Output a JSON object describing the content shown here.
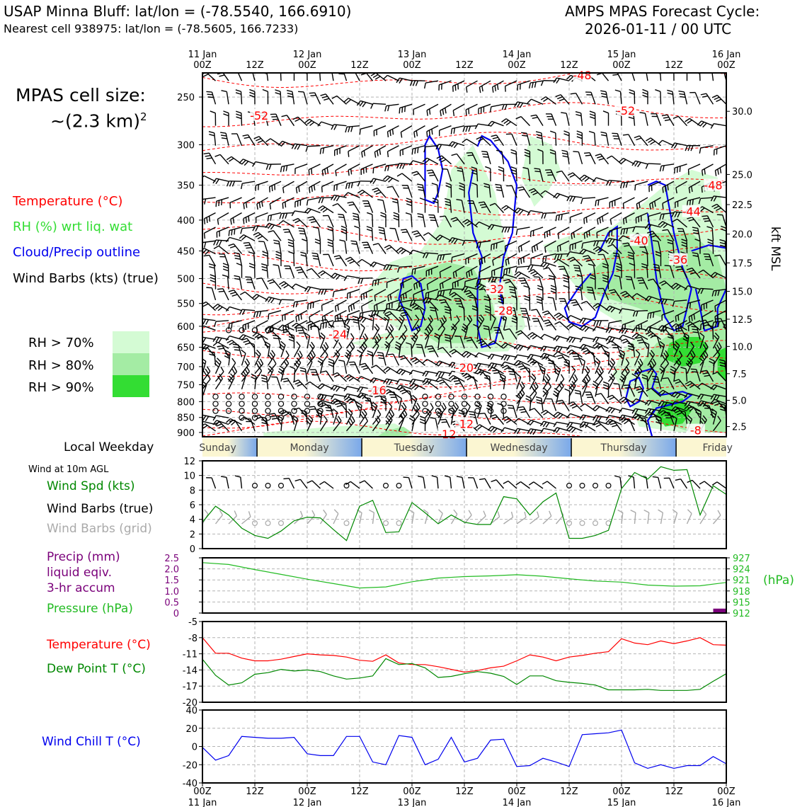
{
  "header": {
    "title_left": "USAP Minna Bluff: lat/lon = (-78.5540, 166.6910)",
    "subtitle_left": "Nearest cell 938975: lat/lon = (-78.5605, 166.7233)",
    "title_right_1": "AMPS MPAS Forecast Cycle:",
    "title_right_2": "2026-01-11 / 00 UTC"
  },
  "cell_size": {
    "line1": "MPAS cell size:",
    "line2": "~(2.3 km)",
    "sup": "2"
  },
  "legend_upper": {
    "temperature": "Temperature (°C)",
    "rh": "RH (%) wrt liq. wat",
    "cloud": "Cloud/Precip outline",
    "wind": "Wind Barbs (kts) (true)",
    "rh70": "RH > 70%",
    "rh80": "RH > 80%",
    "rh90": "RH > 90%"
  },
  "colors": {
    "temperature": "#ff0000",
    "rh_label": "#33dd33",
    "cloud": "#0000ee",
    "rh70": "#d4fbd4",
    "rh80": "#a4eca4",
    "rh90": "#33dd33",
    "speed": "#008800",
    "grid_barbs": "#aaaaaa",
    "precip": "#7a007a",
    "pressure": "#22bb22",
    "dewpoint": "#008800",
    "windchill": "#0000ee"
  },
  "time_axis": {
    "top_dates": [
      "11 Jan",
      "",
      "12 Jan",
      "",
      "13 Jan",
      "",
      "14 Jan",
      "",
      "15 Jan",
      "",
      "16 Jan"
    ],
    "hours": [
      "00Z",
      "12Z",
      "00Z",
      "12Z",
      "00Z",
      "12Z",
      "00Z",
      "12Z",
      "00Z",
      "12Z",
      "00Z"
    ],
    "bottom_dates": [
      "11 Jan",
      "",
      "12 Jan",
      "",
      "13 Jan",
      "",
      "14 Jan",
      "",
      "15 Jan",
      "",
      "16 Jan"
    ]
  },
  "weekday": {
    "label": "Local Weekday",
    "days": [
      "Sunday",
      "Monday",
      "Tuesday",
      "Wednesday",
      "Thursday",
      "Friday"
    ]
  },
  "surface_legend": {
    "heading": "Wind at 10m AGL",
    "speed": "Wind Spd (kts)",
    "barbs": "Wind Barbs (true)",
    "barbs_grid": "Wind Barbs (grid)",
    "precip1": "Precip (mm)",
    "precip2": "liquid eqiv.",
    "precip3": "3-hr accum",
    "pressure": "Pressure (hPa)",
    "pressure_units": "(hPa)",
    "temperature": "Temperature (°C)",
    "dewpoint": "Dew Point T (°C)",
    "windchill": "Wind Chill T (°C)"
  },
  "chart_data": [
    {
      "type": "heatmap",
      "name": "cross-section",
      "ylabel_right": "kft MSL",
      "pressure_ticks": [
        250,
        300,
        350,
        400,
        450,
        500,
        550,
        600,
        650,
        700,
        750,
        800,
        850,
        900
      ],
      "kft_ticks": [
        {
          "p": 264,
          "label": "30.0"
        },
        {
          "p": 336,
          "label": "25.0"
        },
        {
          "p": 377,
          "label": "22.5"
        },
        {
          "p": 422,
          "label": "20.0"
        },
        {
          "p": 471,
          "label": "17.5"
        },
        {
          "p": 525,
          "label": "15.0"
        },
        {
          "p": 584,
          "label": "12.5"
        },
        {
          "p": 648,
          "label": "10.0"
        },
        {
          "p": 719,
          "label": "7.5"
        },
        {
          "p": 796,
          "label": "5.0"
        },
        {
          "p": 880,
          "label": "2.5"
        }
      ],
      "ylim": [
        228,
        915
      ],
      "x_range_hours": [
        0,
        120
      ],
      "temperature_labels": [
        {
          "t": 13,
          "p": 268,
          "v": "-52"
        },
        {
          "t": 97,
          "p": 263,
          "v": "-52"
        },
        {
          "t": 87,
          "p": 230,
          "v": "-48"
        },
        {
          "t": 117,
          "p": 350,
          "v": "-48"
        },
        {
          "t": 112,
          "p": 387,
          "v": "-44"
        },
        {
          "t": 100,
          "p": 432,
          "v": "-40"
        },
        {
          "t": 109,
          "p": 465,
          "v": "-36"
        },
        {
          "t": 67,
          "p": 520,
          "v": "-32"
        },
        {
          "t": 69,
          "p": 565,
          "v": "-28"
        },
        {
          "t": 31,
          "p": 618,
          "v": "-24"
        },
        {
          "t": 60,
          "p": 702,
          "v": "-20"
        },
        {
          "t": 40,
          "p": 765,
          "v": "-16"
        },
        {
          "t": 60,
          "p": 870,
          "v": "-12"
        },
        {
          "t": 56,
          "p": 905,
          "v": "-12"
        },
        {
          "t": 113,
          "p": 892,
          "v": "-8"
        }
      ]
    },
    {
      "type": "line",
      "name": "surface-wind",
      "x_hours": [
        0,
        3,
        6,
        9,
        12,
        15,
        18,
        21,
        24,
        27,
        30,
        33,
        36,
        39,
        42,
        45,
        48,
        51,
        54,
        57,
        60,
        63,
        66,
        69,
        72,
        75,
        78,
        81,
        84,
        87,
        90,
        93,
        96,
        99,
        102,
        105,
        108,
        111,
        114,
        117,
        120
      ],
      "series": [
        {
          "name": "Wind Spd (kts)",
          "values": [
            3.6,
            5.8,
            4.6,
            2.8,
            1.8,
            1.4,
            2.4,
            3.8,
            4.3,
            4.2,
            2.6,
            1.1,
            5.8,
            6.6,
            2.2,
            2.3,
            6.3,
            4.9,
            3.4,
            4.6,
            3.6,
            3.3,
            3.3,
            7.1,
            6.8,
            4.6,
            6.4,
            7.6,
            1.4,
            1.4,
            1.8,
            2.5,
            8.2,
            10.4,
            9.5,
            11.2,
            10.7,
            10.8,
            4.6,
            8.6,
            7.4
          ]
        }
      ],
      "ylim": [
        0,
        12
      ],
      "yticks": [
        "0",
        "2",
        "4",
        "6",
        "8",
        "10",
        "12"
      ]
    },
    {
      "type": "line",
      "name": "pressure-precip",
      "x_hours": [
        0,
        6,
        12,
        18,
        24,
        30,
        36,
        42,
        48,
        54,
        60,
        66,
        72,
        78,
        84,
        90,
        96,
        102,
        108,
        114,
        120
      ],
      "series": [
        {
          "name": "Pressure (hPa)",
          "values": [
            925.7,
            925.2,
            923.8,
            922.5,
            921.2,
            920.0,
            918.8,
            919.1,
            920.5,
            921.5,
            921.9,
            922.1,
            922.4,
            922.0,
            921.3,
            920.7,
            920.4,
            919.6,
            919.3,
            919.4,
            920.3
          ]
        },
        {
          "name": "Precip (mm)",
          "bars": [
            {
              "t": 118.5,
              "v": 0.2
            }
          ]
        }
      ],
      "ylim_precip": [
        0,
        2.5
      ],
      "yticks_precip": [
        "0",
        "0.5",
        "1.0",
        "1.5",
        "2.0",
        "2.5"
      ],
      "ylim_pressure": [
        912,
        927
      ],
      "yticks_pressure": [
        "912",
        "915",
        "918",
        "921",
        "924",
        "927"
      ]
    },
    {
      "type": "line",
      "name": "temperature-dewpoint",
      "x_hours": [
        0,
        3,
        6,
        9,
        12,
        15,
        18,
        21,
        24,
        27,
        30,
        33,
        36,
        39,
        42,
        45,
        48,
        51,
        54,
        57,
        60,
        63,
        66,
        69,
        72,
        75,
        78,
        81,
        84,
        87,
        90,
        93,
        96,
        99,
        102,
        105,
        108,
        111,
        114,
        117,
        120
      ],
      "series": [
        {
          "name": "Temperature (°C)",
          "values": [
            -8.0,
            -10.9,
            -10.9,
            -11.8,
            -12.3,
            -12.3,
            -12.0,
            -11.5,
            -11.0,
            -11.2,
            -11.3,
            -11.6,
            -12.2,
            -12.4,
            -11.2,
            -12.7,
            -13.0,
            -13.0,
            -13.4,
            -13.9,
            -14.4,
            -14.1,
            -13.6,
            -13.3,
            -12.3,
            -11.2,
            -11.6,
            -12.3,
            -11.6,
            -11.3,
            -10.9,
            -10.6,
            -8.2,
            -9.0,
            -9.3,
            -8.6,
            -9.1,
            -8.6,
            -8.0,
            -9.3,
            -9.4
          ]
        },
        {
          "name": "Dew Point T (°C)",
          "values": [
            -12.0,
            -15.0,
            -16.8,
            -16.4,
            -14.8,
            -14.5,
            -13.9,
            -14.2,
            -14.0,
            -14.3,
            -15.1,
            -15.7,
            -15.5,
            -15.1,
            -11.9,
            -13.0,
            -12.8,
            -13.6,
            -15.4,
            -15.2,
            -14.7,
            -14.3,
            -14.6,
            -15.2,
            -16.7,
            -15.1,
            -15.1,
            -16.0,
            -16.3,
            -16.5,
            -16.8,
            -17.7,
            -17.7,
            -17.7,
            -17.6,
            -17.8,
            -17.8,
            -17.8,
            -17.6,
            -16.1,
            -14.7
          ]
        }
      ],
      "ylim": [
        -20,
        -5
      ],
      "yticks": [
        "-20",
        "-17",
        "-14",
        "-11",
        "-8",
        "-5"
      ]
    },
    {
      "type": "line",
      "name": "wind-chill",
      "x_hours": [
        0,
        3,
        6,
        9,
        12,
        15,
        18,
        21,
        24,
        27,
        30,
        33,
        36,
        39,
        42,
        45,
        48,
        51,
        54,
        57,
        60,
        63,
        66,
        69,
        72,
        75,
        78,
        81,
        84,
        87,
        90,
        93,
        96,
        99,
        102,
        105,
        108,
        111,
        114,
        117,
        120
      ],
      "series": [
        {
          "name": "Wind Chill T (°C)",
          "values": [
            -1,
            -15,
            -10,
            11,
            10,
            9,
            9,
            10,
            -8,
            -10,
            -10,
            11,
            11,
            -17,
            -20,
            12,
            10,
            -20,
            -14,
            10,
            -17,
            -13,
            7,
            8,
            -22,
            -21,
            -13,
            -17,
            -22,
            13,
            14,
            15,
            18,
            -18,
            -24,
            -20,
            -24,
            -21,
            -21,
            -11,
            -19
          ]
        }
      ],
      "ylim": [
        -40,
        40
      ],
      "yticks": [
        "-40",
        "-20",
        "0",
        "20",
        "40"
      ]
    }
  ]
}
